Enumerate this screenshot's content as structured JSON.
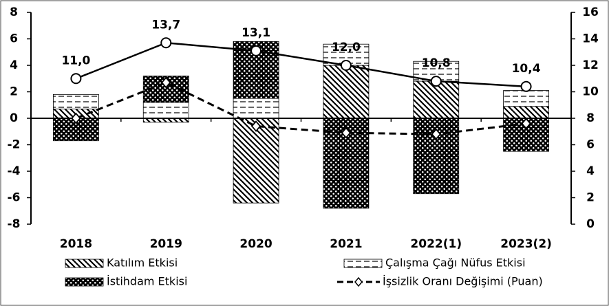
{
  "chart_data": {
    "type": "bar",
    "categories": [
      "2018",
      "2019",
      "2020",
      "2021",
      "2022(1)",
      "2023(2)"
    ],
    "series": [
      {
        "name": "Katılım Etkisi",
        "pattern": "diagonal",
        "color": "#000000",
        "values": [
          0.7,
          -0.3,
          -6.4,
          4.0,
          2.8,
          0.9
        ]
      },
      {
        "name": "Çalışma Çağı Nüfus Etkisi",
        "pattern": "dashes",
        "color": "#000000",
        "values": [
          1.1,
          1.2,
          1.5,
          1.6,
          1.5,
          1.2
        ]
      },
      {
        "name": "İstihdam Etkisi",
        "pattern": "dots",
        "color": "#000000",
        "values": [
          -1.7,
          2.0,
          4.3,
          -6.8,
          -5.7,
          -2.5
        ]
      },
      {
        "name": "İşsizlik Oranı Değişimi (Puan)",
        "type": "line",
        "dashed": true,
        "marker": "diamond",
        "color": "#000000",
        "values": [
          0.0,
          2.7,
          -0.6,
          -1.1,
          -1.2,
          -0.4
        ]
      },
      {
        "type": "line",
        "axis": "y2",
        "marker": "circle",
        "color": "#000000",
        "values": [
          11.0,
          13.7,
          13.1,
          12.0,
          10.8,
          10.4
        ],
        "value_labels": [
          "11,0",
          "13,7",
          "13,1",
          "12,0",
          "10,8",
          "10,4"
        ]
      }
    ],
    "ylim": [
      -8,
      8
    ],
    "yticks": [
      -8,
      -6,
      -4,
      -2,
      0,
      2,
      4,
      6,
      8
    ],
    "y2lim": [
      0,
      16
    ],
    "y2ticks": [
      0,
      2,
      4,
      6,
      8,
      10,
      12,
      14,
      16
    ],
    "grid": false
  }
}
